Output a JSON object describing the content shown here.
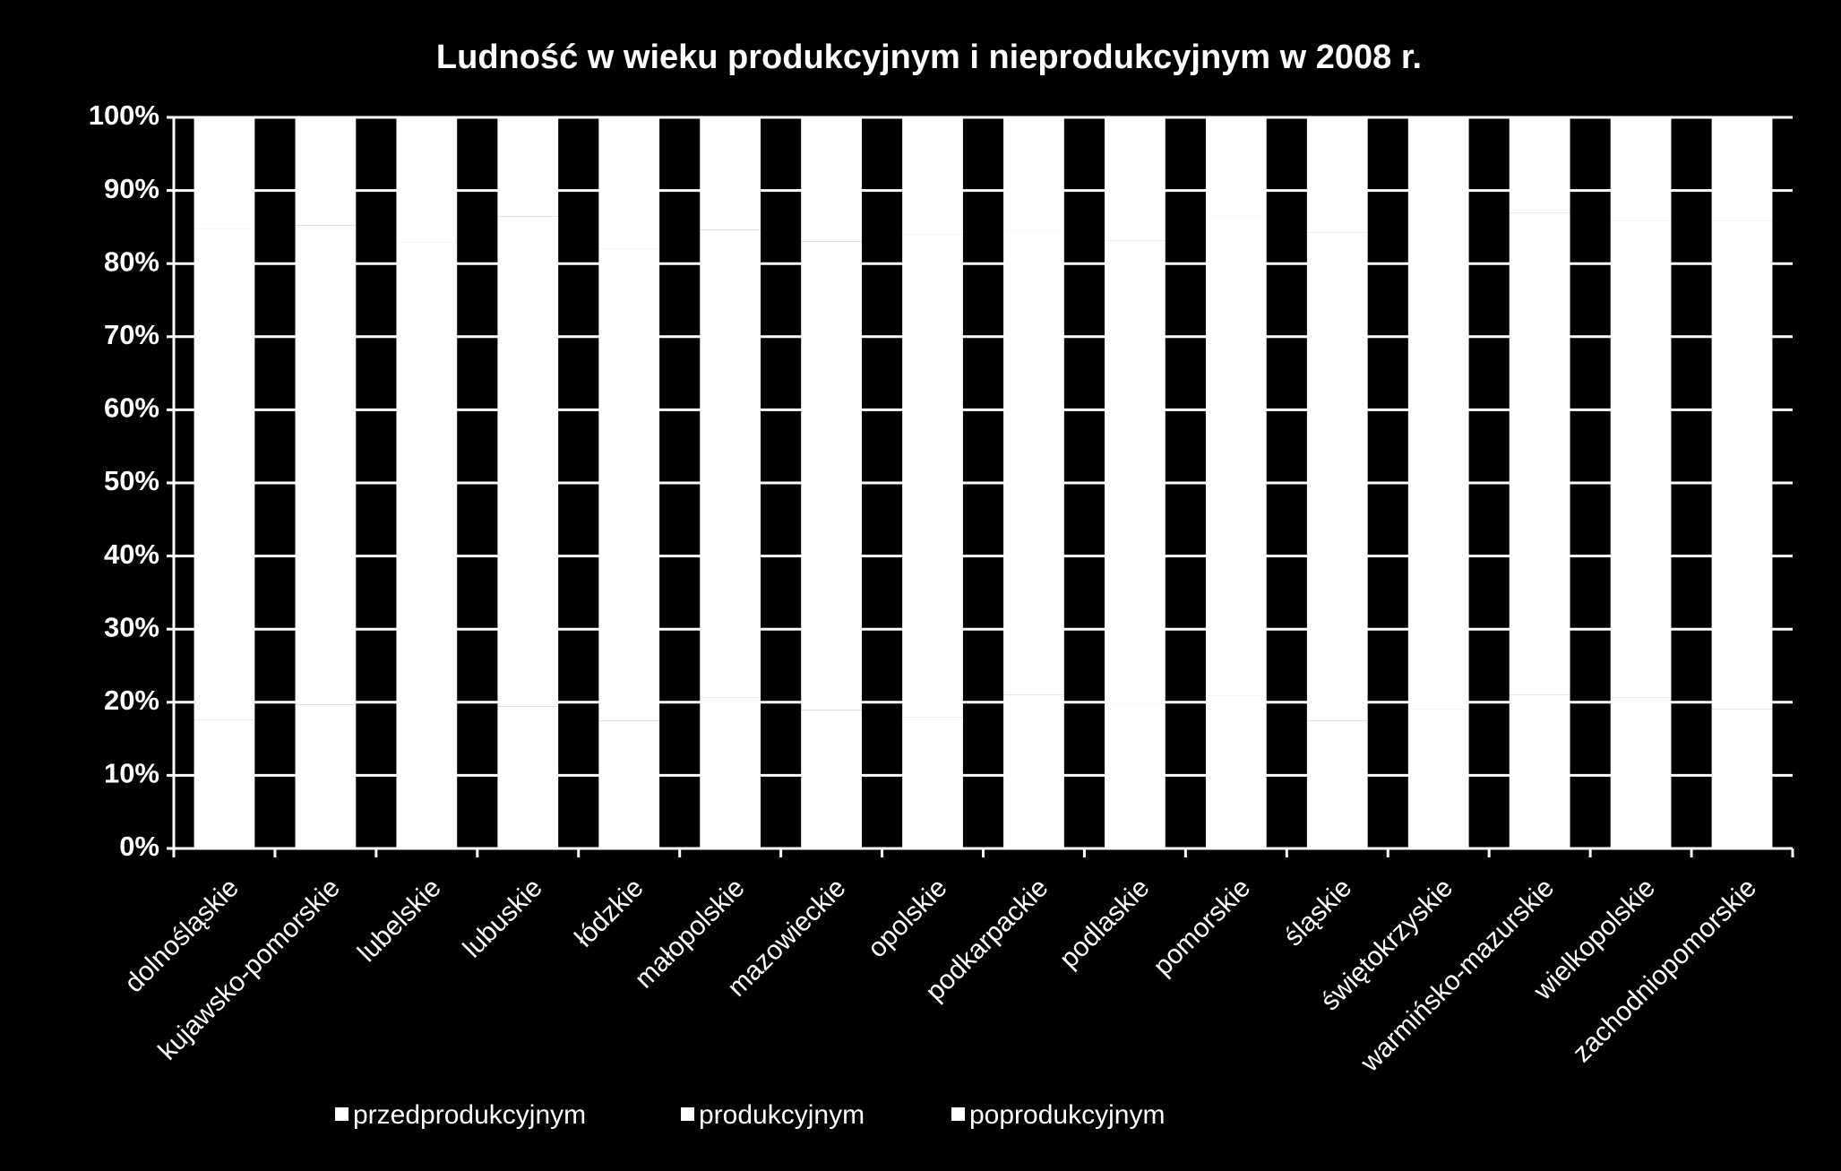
{
  "chart_data": {
    "type": "stacked-bar-100",
    "title": "Ludność w wieku produkcyjnym  i nieprodukcyjnym  w 2008 r.",
    "categories": [
      "dolnośląskie",
      "kujawsko-pomorskie",
      "lubelskie",
      "lubuskie",
      "łódzkie",
      "małopolskie",
      "mazowieckie",
      "opolskie",
      "podkarpackie",
      "podlaskie",
      "pomorskie",
      "śląskie",
      "świętokrzyskie",
      "warmińsko-mazurskie",
      "wielkopolskie",
      "zachodniopomorskie"
    ],
    "series": [
      {
        "name": "przedprodukcyjnym",
        "color": "#ffffff",
        "values": [
          17.6,
          19.7,
          19.9,
          19.4,
          17.5,
          20.6,
          18.9,
          17.9,
          21.0,
          19.8,
          20.9,
          17.5,
          19.0,
          21.0,
          20.7,
          19.1
        ]
      },
      {
        "name": "produkcyjnym",
        "color": "#ffffff",
        "values": [
          67.2,
          65.5,
          63.0,
          67.1,
          64.6,
          64.0,
          64.1,
          66.1,
          63.5,
          63.3,
          65.5,
          66.7,
          63.6,
          65.9,
          65.2,
          66.8
        ]
      },
      {
        "name": "poprodukcyjnym",
        "color": "#ffffff",
        "values": [
          15.2,
          14.8,
          17.1,
          13.5,
          17.9,
          15.4,
          17.0,
          16.0,
          15.5,
          16.9,
          13.6,
          15.8,
          17.4,
          13.1,
          14.1,
          14.1
        ]
      }
    ],
    "ylim": [
      0,
      100
    ],
    "yticks": [
      {
        "value": 0,
        "label": "0%"
      },
      {
        "value": 10,
        "label": "10%"
      },
      {
        "value": 20,
        "label": "20%"
      },
      {
        "value": 30,
        "label": "30%"
      },
      {
        "value": 40,
        "label": "40%"
      },
      {
        "value": 50,
        "label": "50%"
      },
      {
        "value": 60,
        "label": "60%"
      },
      {
        "value": 70,
        "label": "70%"
      },
      {
        "value": 80,
        "label": "80%"
      },
      {
        "value": 90,
        "label": "90%"
      },
      {
        "value": 100,
        "label": "100%"
      }
    ],
    "grid": true,
    "legend": "bottom"
  }
}
